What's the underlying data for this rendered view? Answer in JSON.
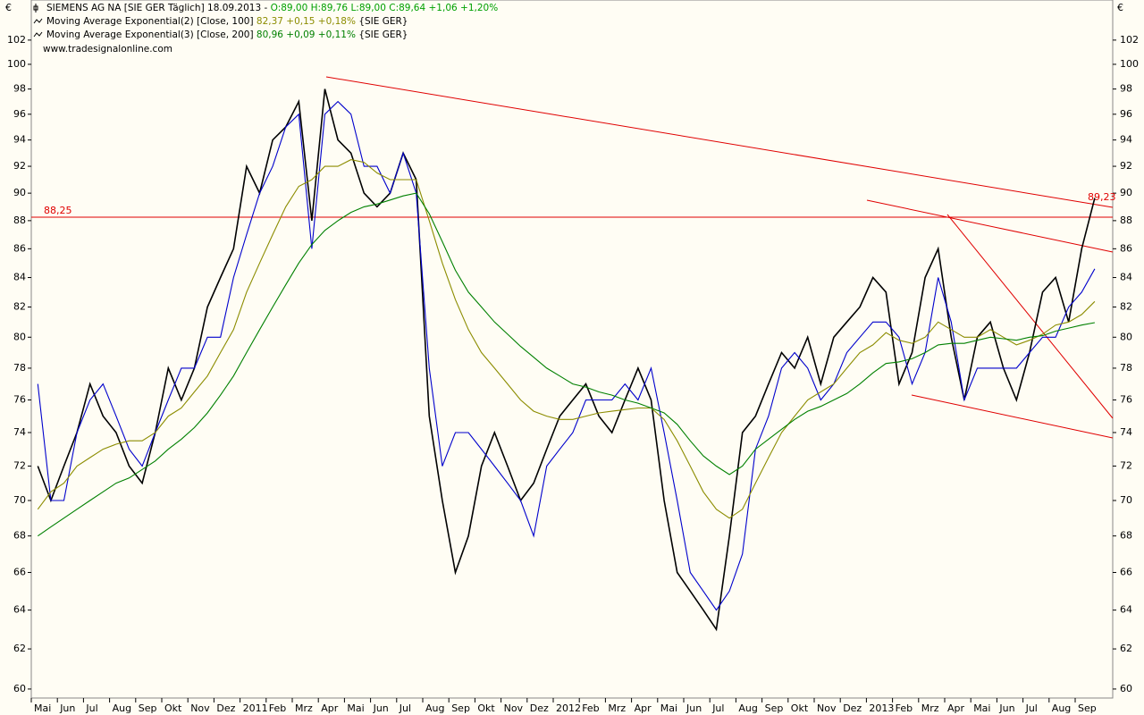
{
  "chart_data": {
    "type": "line",
    "log": true,
    "currency": "€",
    "title": "SIEMENS AG NA [SIE GER  Täglich] 18.09.2013 - ",
    "title_values": "O:89,00 H:89,76 L:89,00 C:89,64 +1,06 +1,20%",
    "source": "www.tradesignalonline.com",
    "categories": [
      "Mai",
      null,
      "Jun",
      null,
      "Jul",
      null,
      "Aug",
      null,
      "Sep",
      null,
      "Okt",
      null,
      "Nov",
      null,
      "Dez",
      null,
      "2011",
      null,
      "Feb",
      null,
      "Mrz",
      null,
      "Apr",
      null,
      "Mai",
      null,
      "Jun",
      null,
      "Jul",
      null,
      "Aug",
      null,
      "Sep",
      null,
      "Okt",
      null,
      "Nov",
      null,
      "Dez",
      null,
      "2012",
      null,
      "Feb",
      null,
      "Mrz",
      null,
      "Apr",
      null,
      "Mai",
      null,
      "Jun",
      null,
      "Jul",
      null,
      "Aug",
      null,
      "Sep",
      null,
      "Okt",
      null,
      "Nov",
      null,
      "Dez",
      null,
      "2013",
      null,
      "Feb",
      null,
      "Mrz",
      null,
      "Apr",
      null,
      "Mai",
      null,
      "Jun",
      null,
      "Jul",
      null,
      "Aug",
      null,
      "Sep",
      null
    ],
    "ylim": [
      59.56,
      105.4
    ],
    "yticks": [
      60,
      62,
      64,
      66,
      68,
      70,
      72,
      74,
      76,
      78,
      80,
      82,
      84,
      86,
      88,
      90,
      92,
      94,
      96,
      98,
      100,
      102
    ],
    "series": [
      {
        "color": "#000000",
        "values": [
          72,
          70,
          72,
          74,
          77,
          75,
          74,
          72,
          71,
          74,
          78,
          76,
          78,
          82,
          84,
          86,
          92,
          90,
          94,
          95,
          97,
          88,
          98,
          94,
          93,
          90,
          89,
          90,
          93,
          91,
          75,
          70,
          66,
          68,
          72,
          74,
          72,
          70,
          71,
          73,
          75,
          76,
          77,
          75,
          74,
          76,
          78,
          76,
          70,
          66,
          65,
          64,
          63,
          68,
          74,
          75,
          77,
          79,
          78,
          80,
          77,
          80,
          81,
          82,
          84,
          83,
          77,
          79,
          84,
          86,
          80,
          76,
          80,
          81,
          78,
          76,
          79,
          83,
          84,
          81,
          86,
          89.64
        ]
      },
      {
        "color": "#0000cc",
        "values": [
          77,
          70,
          70,
          74,
          76,
          77,
          75,
          73,
          72,
          74,
          76,
          78,
          78,
          80,
          80,
          84,
          87,
          90,
          92,
          95,
          96,
          86,
          96,
          97,
          96,
          92,
          92,
          90,
          93,
          90,
          78,
          72,
          74,
          74,
          73,
          72,
          71,
          70,
          68,
          72,
          73,
          74,
          76,
          76,
          76,
          77,
          76,
          78,
          74,
          70,
          66,
          65,
          64,
          65,
          67,
          73,
          75,
          78,
          79,
          78,
          76,
          77,
          79,
          80,
          81,
          81,
          80,
          77,
          79,
          84,
          81,
          76,
          78,
          78,
          78,
          78,
          79,
          80,
          80,
          82,
          83,
          84.6
        ]
      },
      {
        "name": "Moving Average Exponential(2) [Close, 100]",
        "legend_values": "82,37 +0,15 +0,18%",
        "legend_suffix": "{SIE GER}",
        "color": "#8c8c00",
        "values": [
          69.5,
          70.5,
          71,
          72,
          72.5,
          73,
          73.3,
          73.5,
          73.5,
          74,
          75,
          75.5,
          76.5,
          77.5,
          79,
          80.5,
          83,
          85,
          87,
          89,
          90.5,
          91,
          92,
          92,
          92.5,
          92.3,
          91.5,
          91,
          91,
          91,
          88,
          85,
          82.5,
          80.5,
          79,
          78,
          77,
          76,
          75.3,
          75,
          74.8,
          74.8,
          75,
          75.2,
          75.3,
          75.4,
          75.5,
          75.5,
          74.8,
          73.5,
          72,
          70.5,
          69.5,
          69,
          69.5,
          71,
          72.5,
          74,
          75,
          76,
          76.5,
          77,
          78,
          79,
          79.5,
          80.3,
          79.8,
          79.6,
          80,
          81,
          80.5,
          80,
          80,
          80.5,
          80,
          79.5,
          79.8,
          80.2,
          80.8,
          81,
          81.5,
          82.37
        ]
      },
      {
        "name": "Moving Average Exponential(3) [Close, 200]",
        "legend_values": "80,96 +0,09 +0,11%",
        "legend_suffix": "{SIE GER}",
        "color": "#008000",
        "values": [
          68,
          68.5,
          69,
          69.5,
          70,
          70.5,
          71,
          71.3,
          71.8,
          72.3,
          73,
          73.6,
          74.3,
          75.2,
          76.3,
          77.5,
          79,
          80.5,
          82,
          83.5,
          85,
          86.3,
          87.3,
          88,
          88.6,
          89,
          89.2,
          89.5,
          89.8,
          90,
          88.5,
          86.5,
          84.5,
          83,
          82,
          81,
          80.2,
          79.4,
          78.7,
          78,
          77.5,
          77,
          76.8,
          76.5,
          76.3,
          76,
          75.8,
          75.5,
          75.2,
          74.5,
          73.5,
          72.6,
          72,
          71.5,
          72,
          73,
          73.6,
          74.2,
          74.8,
          75.3,
          75.6,
          76,
          76.4,
          77,
          77.7,
          78.3,
          78.4,
          78.6,
          79,
          79.5,
          79.6,
          79.6,
          79.8,
          80,
          79.9,
          79.8,
          80,
          80.1,
          80.4,
          80.6,
          80.8,
          80.96
        ]
      }
    ],
    "annotations": [
      {
        "value": 88.25,
        "label": "88,25"
      },
      {
        "value": 89.23,
        "label": "89,23"
      }
    ]
  }
}
